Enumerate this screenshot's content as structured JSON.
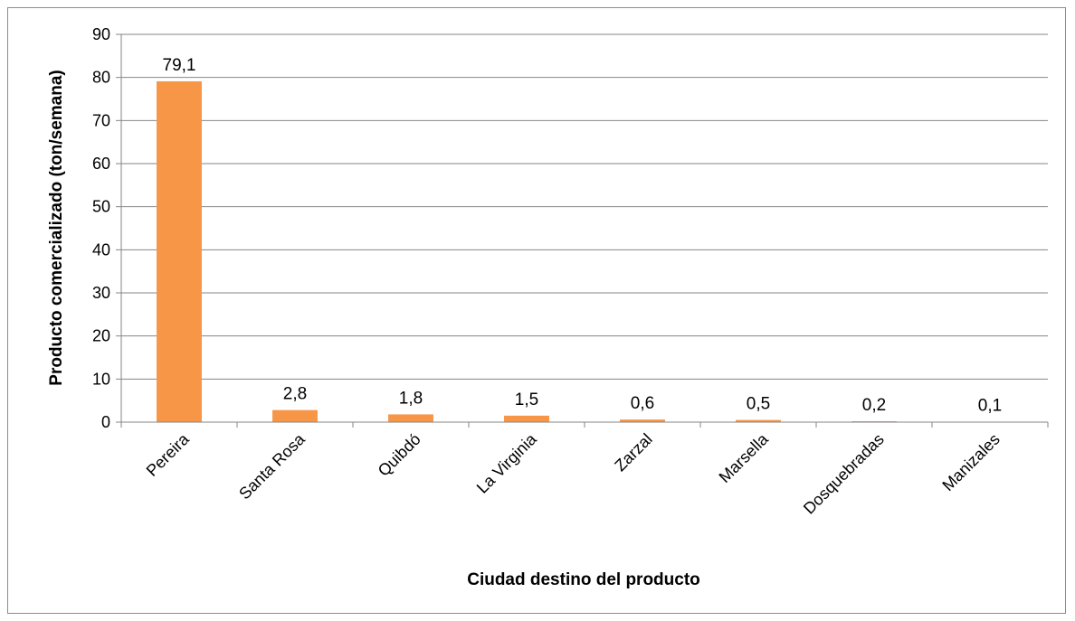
{
  "chart_data": {
    "type": "bar",
    "categories": [
      "Pereira",
      "Santa Rosa",
      "Quibdó",
      "La Virginia",
      "Zarzal",
      "Marsella",
      "Dosquebradas",
      "Manizales"
    ],
    "values": [
      79.1,
      2.8,
      1.8,
      1.5,
      0.6,
      0.5,
      0.2,
      0.1
    ],
    "value_labels": [
      "79,1",
      "2,8",
      "1,8",
      "1,5",
      "0,6",
      "0,5",
      "0,2",
      "0,1"
    ],
    "xlabel": "Ciudad destino del producto",
    "ylabel": "Producto comercializado (ton/semana)",
    "ylim": [
      0,
      90
    ],
    "yticks": [
      0,
      10,
      20,
      30,
      40,
      50,
      60,
      70,
      80,
      90
    ],
    "grid": true,
    "colors": {
      "bar": "#F79646",
      "grid": "#868686",
      "axis": "#868686"
    }
  }
}
